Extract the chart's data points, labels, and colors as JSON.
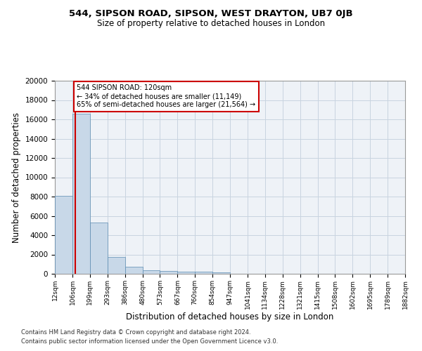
{
  "title_line1": "544, SIPSON ROAD, SIPSON, WEST DRAYTON, UB7 0JB",
  "title_line2": "Size of property relative to detached houses in London",
  "xlabel": "Distribution of detached houses by size in London",
  "ylabel": "Number of detached properties",
  "bar_color": "#c8d8e8",
  "bar_edge_color": "#5a8ab0",
  "property_line_color": "#cc0000",
  "property_value": 120,
  "property_label": "544 SIPSON ROAD: 120sqm",
  "annotation_line1": "← 34% of detached houses are smaller (11,149)",
  "annotation_line2": "65% of semi-detached houses are larger (21,564) →",
  "annotation_box_color": "#ffffff",
  "annotation_box_edge": "#cc0000",
  "bin_edges": [
    12,
    106,
    199,
    293,
    386,
    480,
    573,
    667,
    760,
    854,
    947,
    1041,
    1134,
    1228,
    1321,
    1415,
    1508,
    1602,
    1695,
    1789,
    1882
  ],
  "bar_heights": [
    8100,
    16600,
    5300,
    1750,
    700,
    340,
    280,
    230,
    200,
    160,
    0,
    0,
    0,
    0,
    0,
    0,
    0,
    0,
    0,
    0
  ],
  "tick_labels": [
    "12sqm",
    "106sqm",
    "199sqm",
    "293sqm",
    "386sqm",
    "480sqm",
    "573sqm",
    "667sqm",
    "760sqm",
    "854sqm",
    "947sqm",
    "1041sqm",
    "1134sqm",
    "1228sqm",
    "1321sqm",
    "1415sqm",
    "1508sqm",
    "1602sqm",
    "1695sqm",
    "1789sqm",
    "1882sqm"
  ],
  "ylim": [
    0,
    20000
  ],
  "yticks": [
    0,
    2000,
    4000,
    6000,
    8000,
    10000,
    12000,
    14000,
    16000,
    18000,
    20000
  ],
  "footnote_line1": "Contains HM Land Registry data © Crown copyright and database right 2024.",
  "footnote_line2": "Contains public sector information licensed under the Open Government Licence v3.0.",
  "background_color": "#eef2f7",
  "grid_color": "#c8d4e0",
  "fig_width": 6.0,
  "fig_height": 5.0,
  "dpi": 100
}
